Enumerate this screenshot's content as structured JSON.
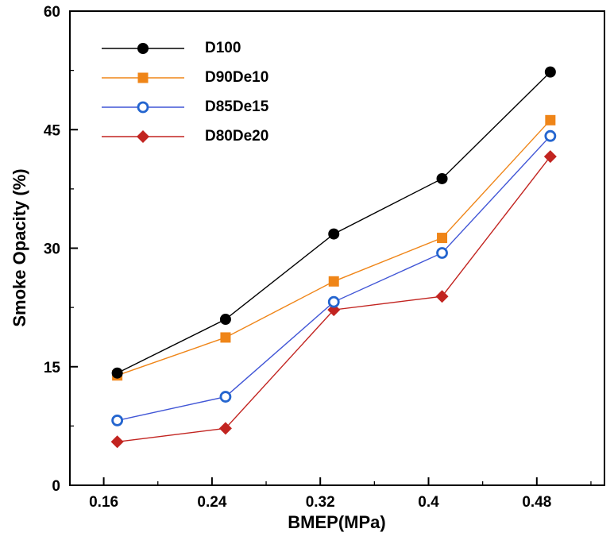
{
  "figure": {
    "background": "#ffffff",
    "border_color": "#000000"
  },
  "chart_data": {
    "type": "line",
    "title": "",
    "xlabel": "BMEP(MPa)",
    "ylabel": "Smoke Opacity (%)",
    "xlim": [
      0.135,
      0.53
    ],
    "ylim": [
      0,
      60
    ],
    "x_ticks": [
      0.16,
      0.24,
      0.32,
      0.4,
      0.48
    ],
    "x_tick_labels": [
      "0.16",
      "0.24",
      "0.32",
      "0.4",
      "0.48"
    ],
    "y_ticks": [
      0,
      15,
      30,
      45,
      60
    ],
    "y_tick_labels": [
      "0",
      "15",
      "30",
      "45",
      "60"
    ],
    "x_minor_step": 0.04,
    "y_minor_step": 7.5,
    "grid": false,
    "legend_position": "top-left",
    "x": [
      0.17,
      0.25,
      0.33,
      0.41,
      0.49
    ],
    "series": [
      {
        "name": "D100",
        "marker": "circle-filled",
        "color": "#000000",
        "line_color": "#000000",
        "values": [
          14.2,
          21.0,
          31.8,
          38.8,
          52.3
        ]
      },
      {
        "name": "D90De10",
        "marker": "square-filled",
        "color": "#ef8518",
        "line_color": "#ef8518",
        "values": [
          13.9,
          18.7,
          25.8,
          31.3,
          46.2
        ]
      },
      {
        "name": "D85De15",
        "marker": "circle-open",
        "color": "#2465cf",
        "line_color": "#4156d6",
        "values": [
          8.2,
          11.2,
          23.2,
          29.4,
          44.2
        ]
      },
      {
        "name": "D80De20",
        "marker": "diamond-filled",
        "color": "#c22420",
        "line_color": "#c22420",
        "values": [
          5.5,
          7.2,
          22.2,
          23.9,
          41.6
        ]
      }
    ]
  }
}
